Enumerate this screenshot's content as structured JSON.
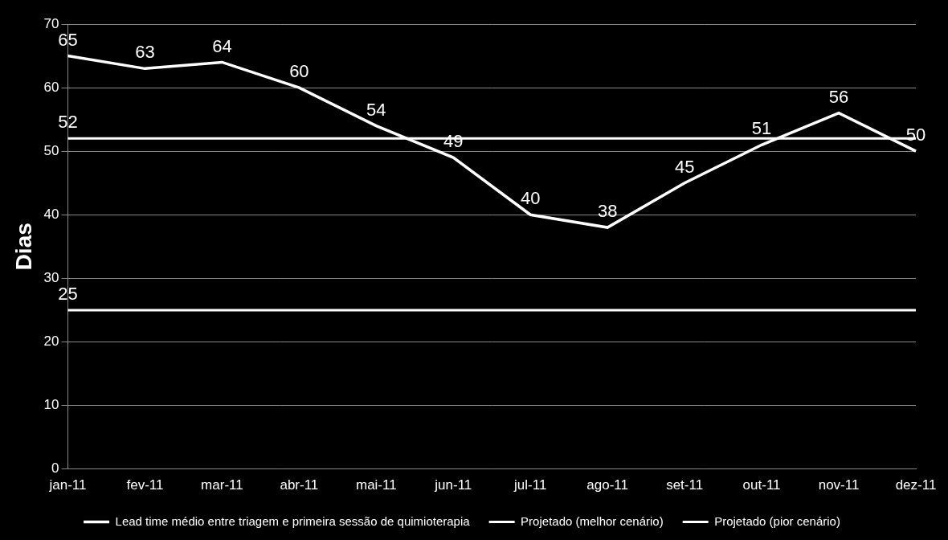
{
  "chart_data": {
    "type": "line",
    "y_label": "Dias",
    "categories": [
      "jan-11",
      "fev-11",
      "mar-11",
      "abr-11",
      "mai-11",
      "jun-11",
      "jul-11",
      "ago-11",
      "set-11",
      "out-11",
      "nov-11",
      "dez-11"
    ],
    "series": [
      {
        "name": "Lead time médio entre triagem e primeira sessão de quimioterapia",
        "color": "#ffffff",
        "values": [
          65,
          63,
          64,
          60,
          54,
          49,
          40,
          38,
          45,
          51,
          56,
          50
        ]
      },
      {
        "name": "Projetado (melhor cenário)",
        "color": "#ffffff",
        "values": [
          25,
          25,
          25,
          25,
          25,
          25,
          25,
          25,
          25,
          25,
          25,
          25
        ],
        "value_labels": [
          "25",
          null,
          null,
          null,
          null,
          null,
          null,
          null,
          null,
          null,
          null,
          null
        ]
      },
      {
        "name": "Projetado (pior cenário)",
        "color": "#ffffff",
        "values": [
          52,
          52,
          52,
          52,
          52,
          52,
          52,
          52,
          52,
          52,
          52,
          52
        ],
        "value_labels": [
          "52",
          null,
          null,
          null,
          null,
          null,
          null,
          null,
          null,
          null,
          null,
          null
        ]
      }
    ],
    "ylim": [
      0,
      70
    ],
    "yticks": [
      0,
      10,
      20,
      30,
      40,
      50,
      60,
      70
    ],
    "grid": true,
    "legend": "bottom",
    "data_labels": true
  }
}
